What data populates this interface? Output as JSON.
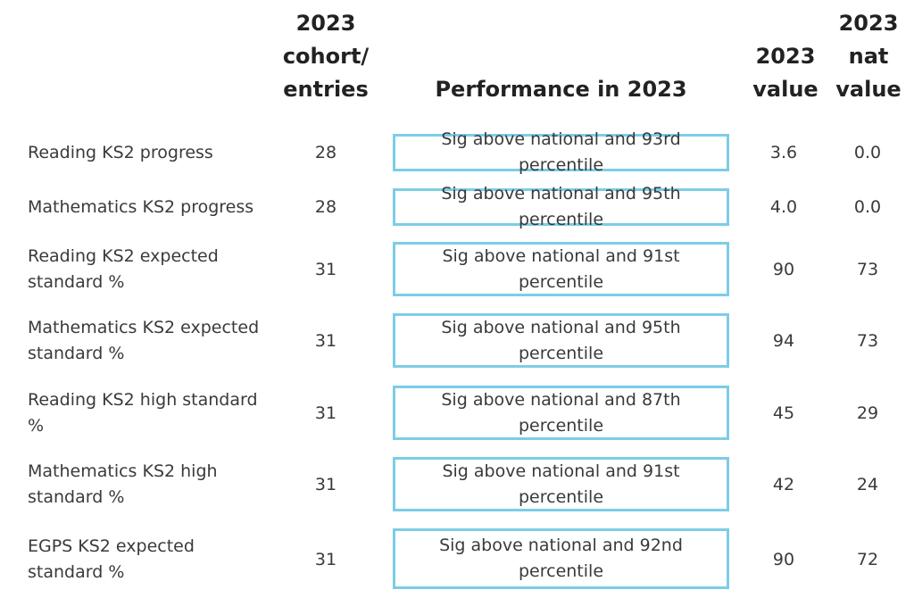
{
  "headers": {
    "cohort": [
      "2023",
      "cohort/",
      "entries"
    ],
    "performance": "Performance in 2023",
    "value": [
      "2023",
      "value"
    ],
    "nat_value": [
      "2023",
      "nat",
      "value"
    ]
  },
  "rows": [
    {
      "label": "Reading KS2 progress",
      "cohort": "28",
      "performance": "Sig above national and 93rd percentile",
      "value": "3.6",
      "nat_value": "0.0"
    },
    {
      "label": "Mathematics KS2 progress",
      "cohort": "28",
      "performance": "Sig above national and 95th percentile",
      "value": "4.0",
      "nat_value": "0.0"
    },
    {
      "label": "Reading KS2 expected standard %",
      "cohort": "31",
      "performance": "Sig above national and 91st percentile",
      "value": "90",
      "nat_value": "73"
    },
    {
      "label": "Mathematics KS2 expected standard %",
      "cohort": "31",
      "performance": "Sig above national and 95th percentile",
      "value": "94",
      "nat_value": "73"
    },
    {
      "label": "Reading KS2 high standard %",
      "cohort": "31",
      "performance": "Sig above national and 87th percentile",
      "value": "45",
      "nat_value": "29"
    },
    {
      "label": "Mathematics KS2 high standard %",
      "cohort": "31",
      "performance": "Sig above national and 91st percentile",
      "value": "42",
      "nat_value": "24"
    },
    {
      "label": "EGPS KS2 expected standard %",
      "cohort": "31",
      "performance": "Sig above national and 92nd percentile",
      "value": "90",
      "nat_value": "72"
    }
  ]
}
